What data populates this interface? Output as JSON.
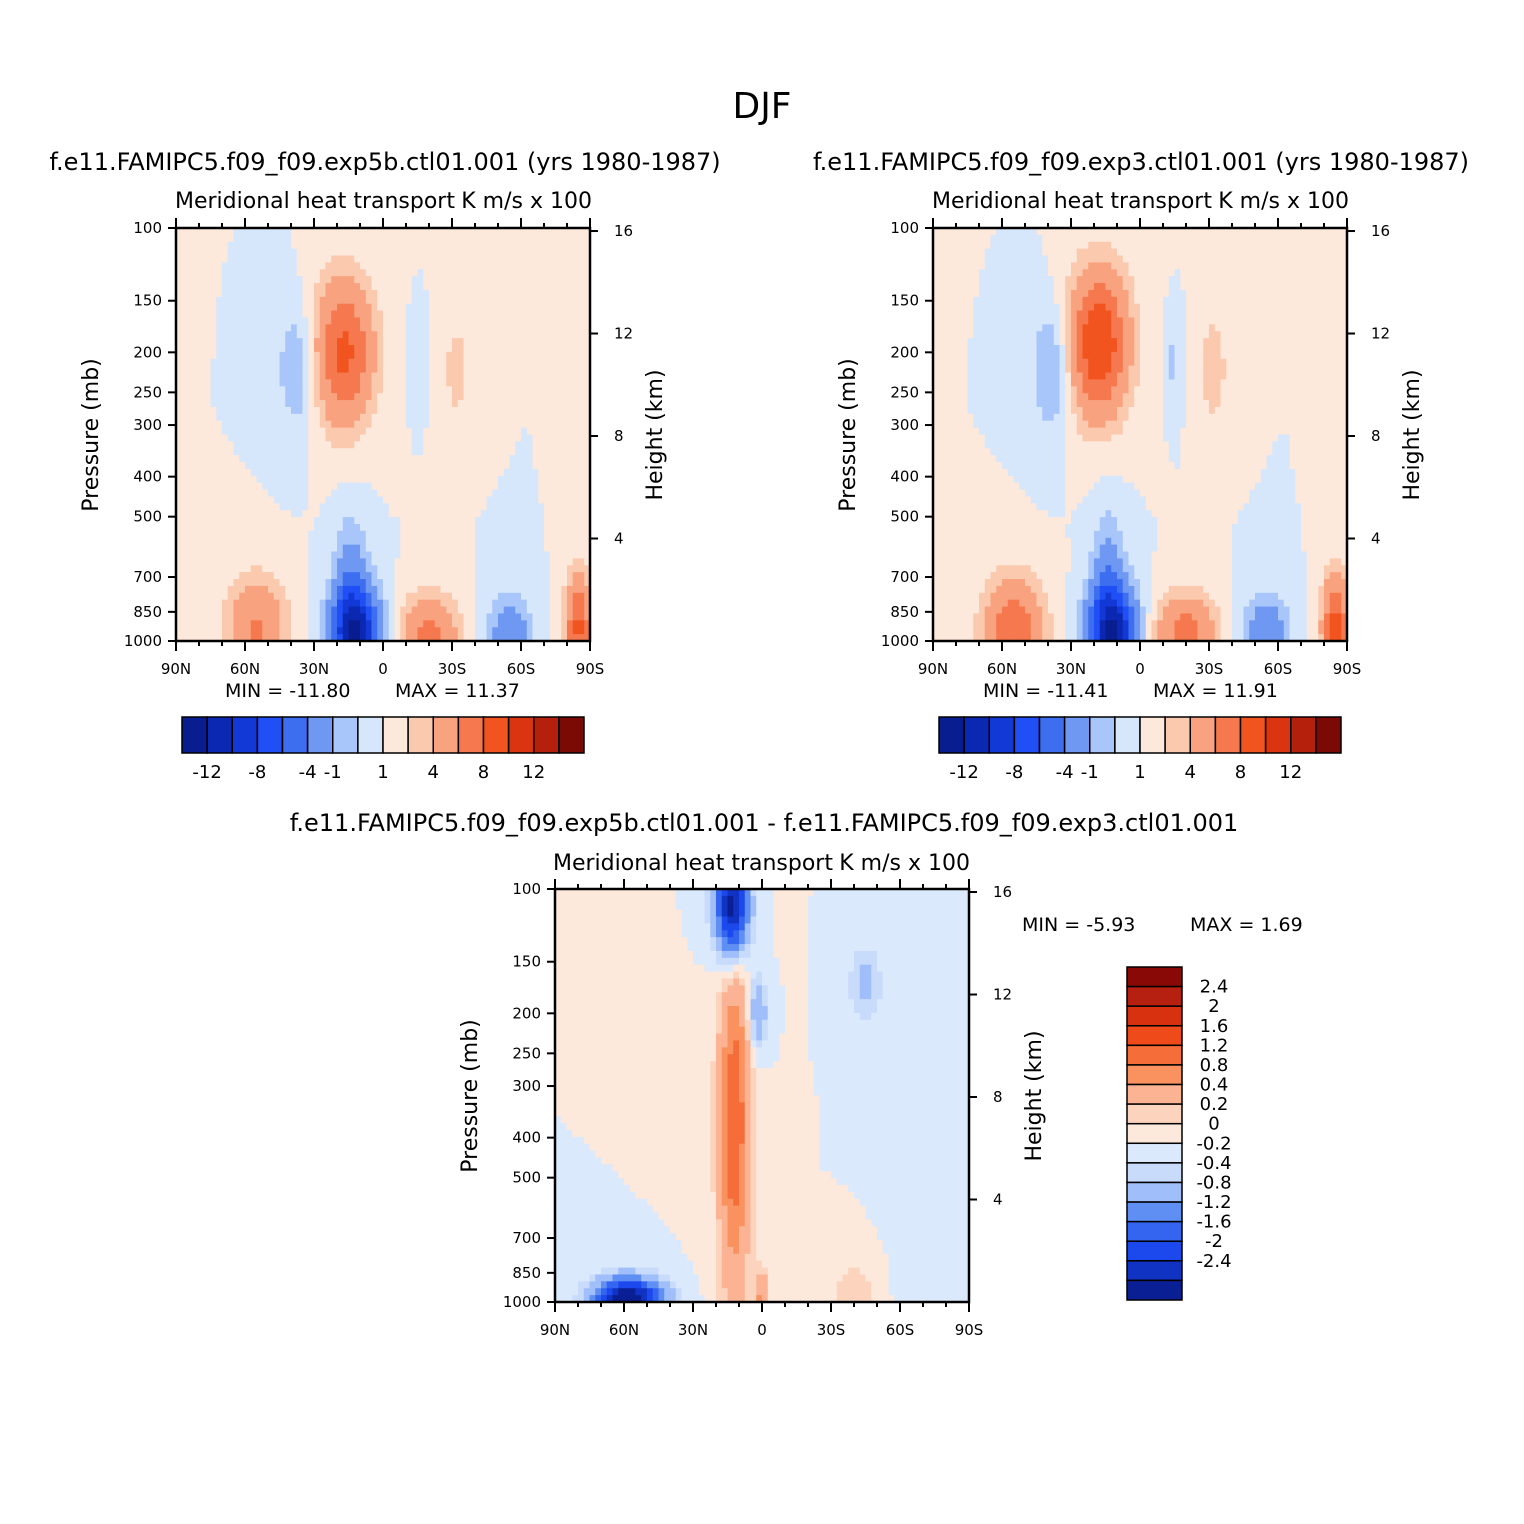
{
  "figure_title": "DJF",
  "chart_data": [
    {
      "type": "heatmap",
      "case_title": "f.e11.FAMIPC5.f09_f09.exp5b.ctl01.001 (yrs 1980-1987)",
      "left_label": "Meridional heat transport",
      "right_label": "K m/s x 100",
      "xlabel": "",
      "ylabel": "Pressure (mb)",
      "ylabel_right": "Height (km)",
      "x_tick_labels": [
        "90N",
        "60N",
        "30N",
        "0",
        "30S",
        "60S",
        "90S"
      ],
      "y_tick_labels": [
        "100",
        "150",
        "200",
        "250",
        "300",
        "400",
        "500",
        "700",
        "850",
        "1000"
      ],
      "y_right_tick_labels": [
        "16",
        "12",
        "8",
        "4"
      ],
      "min_text": "MIN = -11.80",
      "max_text": "MAX = 11.37",
      "min": -11.8,
      "max": 11.37,
      "colorbar_orientation": "horizontal",
      "colorbar_labels": [
        "-12",
        "-8",
        "-4",
        "-1",
        "1",
        "4",
        "8",
        "12"
      ],
      "features": [
        {
          "lat": 17,
          "p": 200,
          "value": 6.5,
          "sigma_lat": 9,
          "sigma_z": 0.28
        },
        {
          "lat": -32,
          "p": 220,
          "value": 1.6,
          "sigma_lat": 4,
          "sigma_z": 0.2
        },
        {
          "lat": 37,
          "p": 220,
          "value": -2.2,
          "sigma_lat": 6,
          "sigma_z": 0.24
        },
        {
          "lat": -14,
          "p": 210,
          "value": -0.9,
          "sigma_lat": 2,
          "sigma_z": 0.15
        },
        {
          "lat": 55,
          "p": 930,
          "value": 4.2,
          "sigma_lat": 9,
          "sigma_z": 0.2
        },
        {
          "lat": 12,
          "p": 960,
          "value": -11.8,
          "sigma_lat": 7,
          "sigma_z": 0.18
        },
        {
          "lat": 14,
          "p": 700,
          "value": -2.5,
          "sigma_lat": 5,
          "sigma_z": 0.25
        },
        {
          "lat": -20,
          "p": 960,
          "value": 4.5,
          "sigma_lat": 9,
          "sigma_z": 0.15
        },
        {
          "lat": -55,
          "p": 960,
          "value": -3.2,
          "sigma_lat": 7,
          "sigma_z": 0.15
        },
        {
          "lat": -85,
          "p": 930,
          "value": 6.5,
          "sigma_lat": 4,
          "sigma_z": 0.2
        }
      ]
    },
    {
      "type": "heatmap",
      "case_title": "f.e11.FAMIPC5.f09_f09.exp3.ctl01.001 (yrs 1980-1987)",
      "left_label": "Meridional heat transport",
      "right_label": "K m/s x 100",
      "xlabel": "",
      "ylabel": "Pressure (mb)",
      "ylabel_right": "Height (km)",
      "x_tick_labels": [
        "90N",
        "60N",
        "30N",
        "0",
        "30S",
        "60S",
        "90S"
      ],
      "y_tick_labels": [
        "100",
        "150",
        "200",
        "250",
        "300",
        "400",
        "500",
        "700",
        "850",
        "1000"
      ],
      "y_right_tick_labels": [
        "16",
        "12",
        "8",
        "4"
      ],
      "min_text": "MIN = -11.41",
      "max_text": "MAX = 11.91",
      "min": -11.41,
      "max": 11.91,
      "colorbar_orientation": "horizontal",
      "colorbar_labels": [
        "-12",
        "-8",
        "-4",
        "-1",
        "1",
        "4",
        "8",
        "12"
      ],
      "features": [
        {
          "lat": 18,
          "p": 190,
          "value": 8,
          "sigma_lat": 9,
          "sigma_z": 0.28
        },
        {
          "lat": -32,
          "p": 220,
          "value": 1.8,
          "sigma_lat": 4,
          "sigma_z": 0.22
        },
        {
          "lat": 38,
          "p": 220,
          "value": -2.5,
          "sigma_lat": 6,
          "sigma_z": 0.24
        },
        {
          "lat": -14,
          "p": 210,
          "value": -1.2,
          "sigma_lat": 2,
          "sigma_z": 0.15
        },
        {
          "lat": 55,
          "p": 930,
          "value": 5.5,
          "sigma_lat": 9,
          "sigma_z": 0.2
        },
        {
          "lat": 12,
          "p": 960,
          "value": -11.4,
          "sigma_lat": 7,
          "sigma_z": 0.18
        },
        {
          "lat": 14,
          "p": 700,
          "value": -2.8,
          "sigma_lat": 5,
          "sigma_z": 0.25
        },
        {
          "lat": -20,
          "p": 960,
          "value": 5,
          "sigma_lat": 9,
          "sigma_z": 0.15
        },
        {
          "lat": -55,
          "p": 960,
          "value": -3.5,
          "sigma_lat": 7,
          "sigma_z": 0.15
        },
        {
          "lat": -85,
          "p": 930,
          "value": 7,
          "sigma_lat": 4,
          "sigma_z": 0.2
        }
      ]
    },
    {
      "type": "heatmap",
      "case_title": "f.e11.FAMIPC5.f09_f09.exp5b.ctl01.001 - f.e11.FAMIPC5.f09_f09.exp3.ctl01.001",
      "left_label": "Meridional heat transport",
      "right_label": "K m/s x 100",
      "xlabel": "",
      "ylabel": "Pressure (mb)",
      "ylabel_right": "Height (km)",
      "x_tick_labels": [
        "90N",
        "60N",
        "30N",
        "0",
        "30S",
        "60S",
        "90S"
      ],
      "y_tick_labels": [
        "100",
        "150",
        "200",
        "250",
        "300",
        "400",
        "500",
        "700",
        "850",
        "1000"
      ],
      "y_right_tick_labels": [
        "16",
        "12",
        "8",
        "4"
      ],
      "min_text": "MIN = -5.93",
      "max_text": "MAX = 1.69",
      "min": -5.93,
      "max": 1.69,
      "colorbar_orientation": "vertical",
      "colorbar_labels": [
        "2.4",
        "2",
        "1.6",
        "1.2",
        "0.8",
        "0.4",
        "0.2",
        "0",
        "-0.2",
        "-0.4",
        "-0.8",
        "-1.2",
        "-1.6",
        "-2",
        "-2.4"
      ],
      "features": [
        {
          "lat": 13,
          "p": 110,
          "value": -2.8,
          "sigma_lat": 5,
          "sigma_z": 0.2
        },
        {
          "lat": 2,
          "p": 200,
          "value": -0.8,
          "sigma_lat": 3,
          "sigma_z": 0.15
        },
        {
          "lat": -45,
          "p": 170,
          "value": -0.5,
          "sigma_lat": 5,
          "sigma_z": 0.15
        },
        {
          "lat": 12,
          "p": 370,
          "value": 1.1,
          "sigma_lat": 4,
          "sigma_z": 0.55
        },
        {
          "lat": 12,
          "p": 380,
          "value": 0.5,
          "sigma_lat": 6,
          "sigma_z": 0.9
        },
        {
          "lat": 58,
          "p": 985,
          "value": -3,
          "sigma_lat": 10,
          "sigma_z": 0.08
        },
        {
          "lat": 0,
          "p": 980,
          "value": 0.9,
          "sigma_lat": 2,
          "sigma_z": 0.1
        },
        {
          "lat": -40,
          "p": 960,
          "value": 0.4,
          "sigma_lat": 6,
          "sigma_z": 0.12
        },
        {
          "lat": -75,
          "p": 600,
          "value": -0.2,
          "sigma_lat": 8,
          "sigma_z": 0.7
        }
      ]
    }
  ],
  "colormaps": {
    "full": [
      "#081d8f",
      "#0b28b2",
      "#1238d6",
      "#1f4ff5",
      "#3d6ef0",
      "#6e98f2",
      "#a9c6fb",
      "#d6e6fb",
      "#fde8dc",
      "#fbc9ad",
      "#f9a27f",
      "#f6784e",
      "#f1541f",
      "#db3410",
      "#b4200b",
      "#7c0a04"
    ],
    "full_levels": [
      -12,
      -10,
      -8,
      -6,
      -4,
      -2,
      -1,
      0,
      1,
      2,
      4,
      6,
      8,
      10,
      12
    ],
    "diff": [
      "#0b1f95",
      "#1133c4",
      "#1b49ee",
      "#3465f0",
      "#5f8ff3",
      "#a0bffa",
      "#c9dbfb",
      "#dbe9fc",
      "#fde8dc",
      "#fcd4bd",
      "#fbb394",
      "#f9925f",
      "#f56d38",
      "#ee4a1a",
      "#d7310f",
      "#b62010",
      "#890907"
    ],
    "diff_levels": [
      -2.4,
      -2,
      -1.6,
      -1.2,
      -0.8,
      -0.4,
      -0.2,
      0,
      0.2,
      0.4,
      0.8,
      1.2,
      1.6,
      2,
      2.4
    ]
  }
}
